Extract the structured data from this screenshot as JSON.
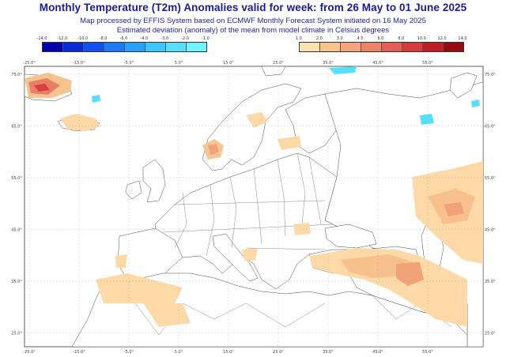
{
  "header": {
    "title": "Monthly Temperature (T2m) Anomalies valid for week: from 26 May to 01 June 2025",
    "subtitle1": "Map processed by EFFIS System based on ECMWF Monthly Forecast System initiated on 16 May 2025",
    "subtitle2": "Estimated deviation (anomaly) of the mean from model climate in Celsius degrees"
  },
  "legend": {
    "cold": {
      "labels": [
        "-14.0",
        "-12.0",
        "-10.0",
        "-8.0",
        "-6.0",
        "-4.0",
        "-3.0",
        "-2.0",
        "-1.0"
      ],
      "colors": [
        "#0000b0",
        "#0a2ad8",
        "#1450f0",
        "#1e78f8",
        "#28a0ff",
        "#3cc4ff",
        "#55e0ff",
        "#70f4ff"
      ]
    },
    "warm": {
      "labels": [
        "1.0",
        "2.0",
        "3.0",
        "4.0",
        "6.0",
        "8.0",
        "10.0",
        "12.0",
        "14.0"
      ],
      "colors": [
        "#fde0b0",
        "#f9c38e",
        "#f3a47c",
        "#ec8468",
        "#e45f55",
        "#d83b3b",
        "#c01e24",
        "#960a10"
      ]
    }
  },
  "map": {
    "top_lon_labels": [
      "-25.0°",
      "-15.0°",
      "-5.0°",
      "5.0°",
      "15.0°",
      "25.0°",
      "35.0°",
      "45.0°",
      "55.0°"
    ],
    "bottom_lon_labels": [
      "-25.0°",
      "-15.0°",
      "-5.0°",
      "5.0°",
      "15.0°",
      "25.0°",
      "35.0°",
      "45.0°",
      "55.0°"
    ],
    "left_lat_labels": [
      "75.0°",
      "65.0°",
      "55.0°",
      "45.0°",
      "35.0°",
      "25.0°"
    ],
    "right_lat_labels": [
      "75.0°",
      "65.0°",
      "55.0°",
      "45.0°",
      "35.0°",
      "25.0°"
    ]
  }
}
